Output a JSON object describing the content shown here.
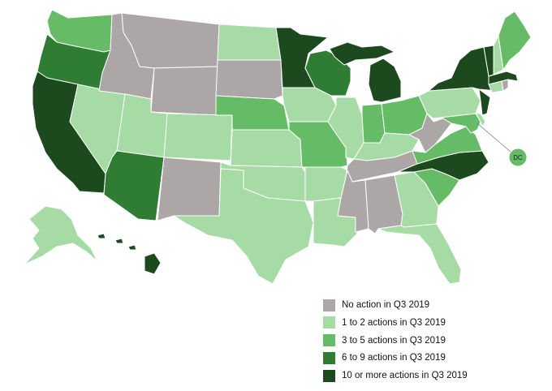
{
  "colors": {
    "none": "#aca6a6",
    "low": "#a6dba6",
    "mid": "#66bb66",
    "high": "#2f7d32",
    "top": "#1c4a1e",
    "border": "#ffffff"
  },
  "legend": [
    {
      "label": "No action in Q3 2019",
      "level": "none"
    },
    {
      "label": "1 to 2 actions in Q3 2019",
      "level": "low"
    },
    {
      "label": "3 to 5 actions in Q3 2019",
      "level": "mid"
    },
    {
      "label": "6 to 9 actions in Q3 2019",
      "level": "high"
    },
    {
      "label": "10 or more actions in Q3 2019",
      "level": "top"
    }
  ],
  "dc": {
    "label": "DC",
    "level": "mid"
  },
  "states": {
    "WA": "mid",
    "OR": "high",
    "CA": "top",
    "NV": "low",
    "ID": "none",
    "MT": "none",
    "WY": "none",
    "UT": "low",
    "AZ": "high",
    "CO": "low",
    "NM": "none",
    "ND": "low",
    "SD": "none",
    "NE": "mid",
    "KS": "low",
    "OK": "low",
    "TX": "low",
    "MN": "top",
    "IA": "low",
    "MO": "mid",
    "AR": "low",
    "LA": "low",
    "WI": "high",
    "IL": "low",
    "MI": "top",
    "IN": "mid",
    "OH": "mid",
    "KY": "low",
    "TN": "none",
    "MS": "none",
    "AL": "none",
    "GA": "low",
    "FL": "low",
    "SC": "mid",
    "NC": "top",
    "VA": "mid",
    "WV": "none",
    "PA": "low",
    "NY": "top",
    "VT": "top",
    "NH": "low",
    "ME": "mid",
    "MA": "top",
    "CT": "low",
    "RI": "none",
    "NJ": "top",
    "DE": "low",
    "MD": "mid",
    "AK": "low",
    "HI": "top"
  }
}
